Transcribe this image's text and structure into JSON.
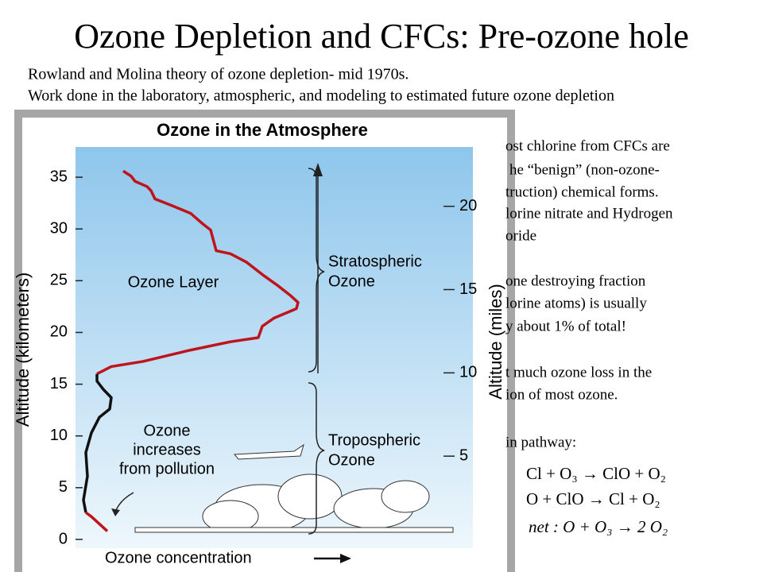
{
  "header": {
    "title": "Ozone Depletion and CFCs: Pre-ozone hole",
    "lines": [
      "Rowland and Molina theory of ozone depletion- mid 1970s.",
      "Work done in the laboratory, atmospheric, and modeling to estimated future ozone depletion"
    ]
  },
  "notes": [
    "ost chlorine from CFCs are",
    "he “benign” (non-ozone-",
    "truction) chemical forms.",
    "lorine nitrate and Hydrogen",
    "oride",
    "one destroying fraction",
    "lorine atoms) is usually",
    "y about 1% of total!",
    "t much ozone loss in the",
    "ion of most ozone.",
    "in pathway:"
  ],
  "equations": [
    "Cl + O₃ → ClO + O₂",
    "O + ClO → Cl + O₂",
    "net : O + O₃ → 2 O₂"
  ],
  "chart_data": {
    "type": "line",
    "title": "Ozone in the Atmosphere",
    "x_label": "Ozone concentration",
    "y_label": "Altitude (kilometers)",
    "y2_label": "Altitude (miles)",
    "xlim": [
      0,
      100
    ],
    "ylim": [
      -1,
      38
    ],
    "yticks": [
      0,
      5,
      10,
      15,
      20,
      25,
      30,
      35
    ],
    "y2lim": [
      -0.62,
      23.61
    ],
    "y2ticks": [
      5,
      10,
      15,
      20
    ],
    "series": [
      {
        "color": "#c0141c",
        "x": [
          12,
          14,
          15,
          18,
          19,
          20,
          24,
          29,
          32,
          34,
          35.4,
          39,
          43,
          47,
          51,
          54,
          56,
          55.6,
          50,
          47,
          46,
          39,
          29,
          17,
          9,
          5.4
        ],
        "values": [
          35.6,
          35.1,
          34.6,
          34.1,
          33.7,
          32.9,
          32.3,
          31.5,
          30.5,
          29.9,
          27.9,
          27.6,
          26.8,
          25.6,
          24.5,
          23.6,
          22.9,
          22.3,
          21.4,
          20.6,
          19.5,
          19.1,
          18.3,
          17.2,
          16.7,
          16.0
        ]
      },
      {
        "color": "#111111",
        "x": [
          5.4,
          5.4,
          7,
          9,
          8.6,
          6,
          4,
          2.6,
          3,
          2,
          2.6
        ],
        "values": [
          16.0,
          15.3,
          14.5,
          13.7,
          12.6,
          11.8,
          10.3,
          8.4,
          6.1,
          3.8,
          2.6
        ]
      },
      {
        "color": "#c0141c",
        "x": [
          2.6,
          4,
          6,
          8
        ],
        "values": [
          2.6,
          2.2,
          1.5,
          0.8
        ]
      }
    ],
    "annotations": [
      "Ozone Layer",
      "Stratospheric",
      "Ozone",
      "Tropospheric",
      "Ozone",
      "Ozone",
      "increases",
      "from pollution"
    ]
  }
}
